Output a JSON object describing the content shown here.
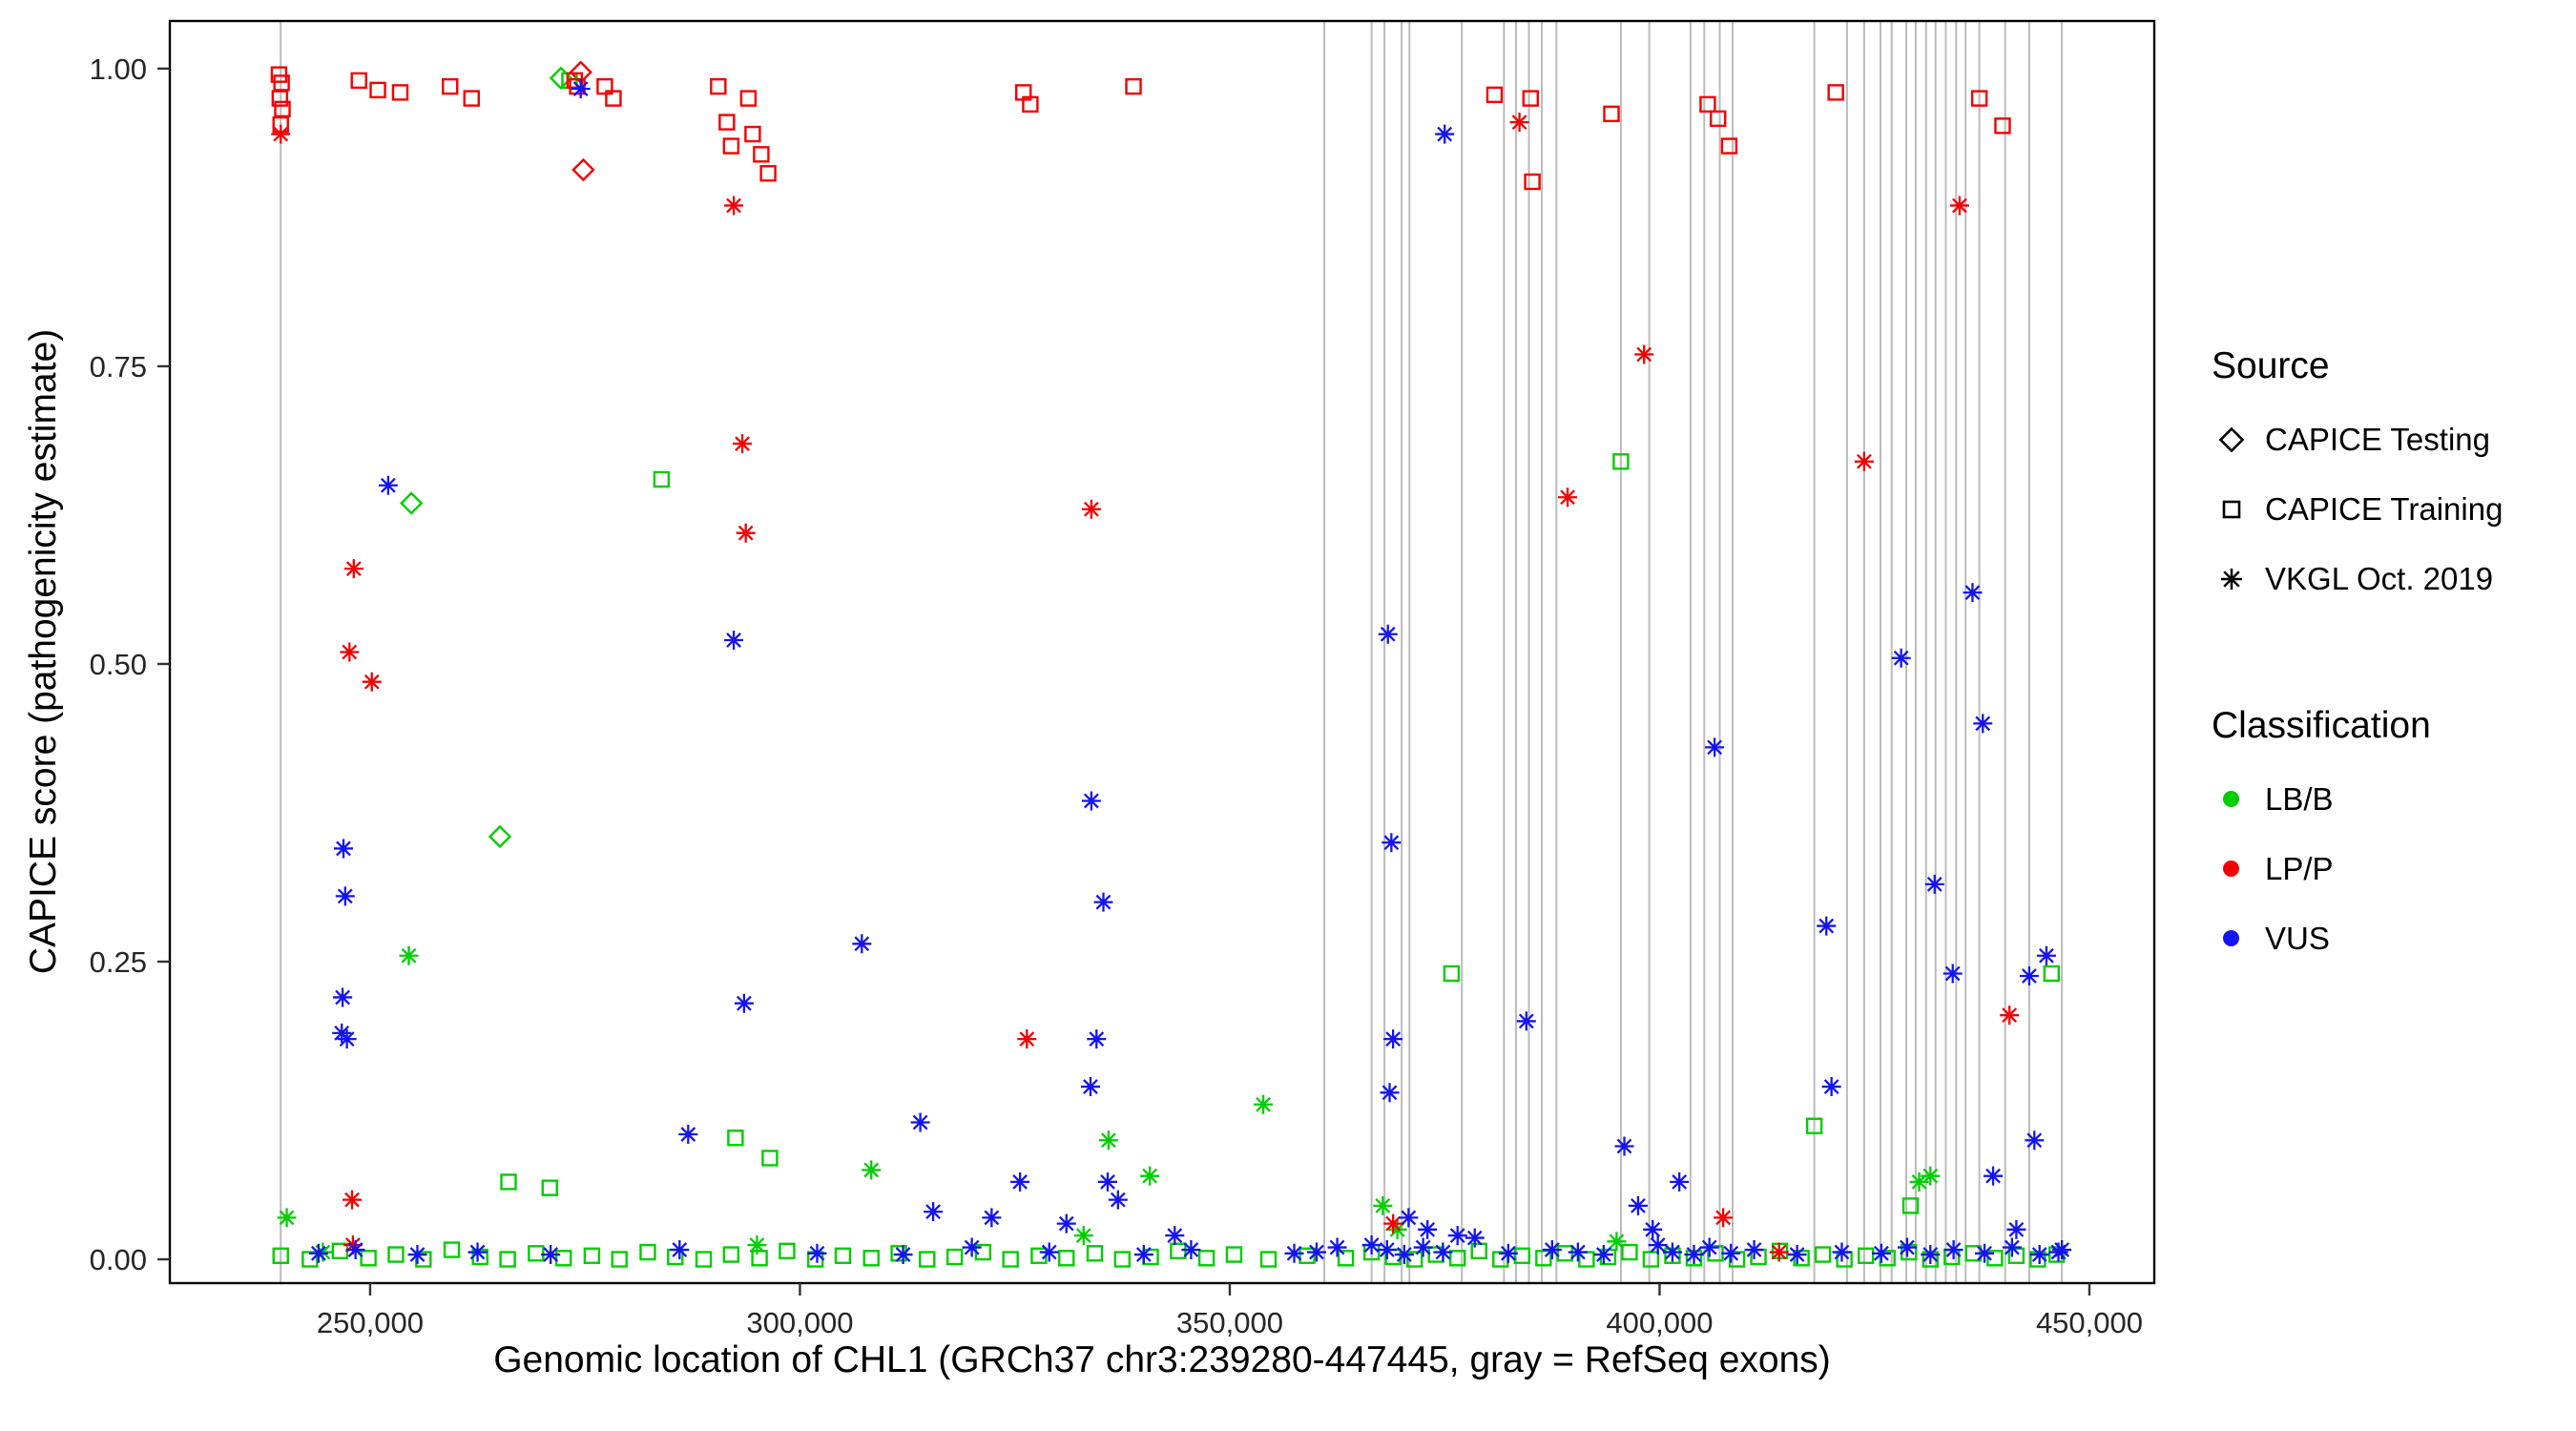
{
  "chart_data": {
    "type": "scatter",
    "title": "",
    "xlabel": "Genomic location of CHL1 (GRCh37 chr3:239280-447445, gray = RefSeq exons)",
    "ylabel": "CAPICE score (pathogenicity estimate)",
    "xlim": [
      226700,
      457550
    ],
    "ylim": [
      -0.02,
      1.04
    ],
    "grid": false,
    "panel_border_color": "#000000",
    "exon_line_color": "#BBBBBB",
    "x_ticks": [
      {
        "value": 250000,
        "label": "250,000"
      },
      {
        "value": 300000,
        "label": "300,000"
      },
      {
        "value": 350000,
        "label": "350,000"
      },
      {
        "value": 400000,
        "label": "400,000"
      },
      {
        "value": 450000,
        "label": "450,000"
      }
    ],
    "y_ticks": [
      {
        "value": 0.0,
        "label": "0.00"
      },
      {
        "value": 0.25,
        "label": "0.25"
      },
      {
        "value": 0.5,
        "label": "0.50"
      },
      {
        "value": 0.75,
        "label": "0.75"
      },
      {
        "value": 1.0,
        "label": "1.00"
      }
    ],
    "legend": {
      "position": "right",
      "source": {
        "title": "Source",
        "items": [
          {
            "label": "CAPICE Testing",
            "shape": "diamond"
          },
          {
            "label": "CAPICE Training",
            "shape": "square"
          },
          {
            "label": "VKGL Oct. 2019",
            "shape": "asterisk"
          }
        ]
      },
      "classification": {
        "title": "Classification",
        "items": [
          {
            "label": "LB/B",
            "color": "#00CE00"
          },
          {
            "label": "LP/P",
            "color": "#F20000"
          },
          {
            "label": "VUS",
            "color": "#1414F0"
          }
        ]
      }
    },
    "exon_lines_x": [
      239600,
      361000,
      366500,
      368000,
      370000,
      370900,
      377000,
      381900,
      383300,
      384800,
      386300,
      388000,
      395500,
      398800,
      403600,
      405200,
      407000,
      408500,
      418000,
      421800,
      423800,
      425700,
      427000,
      428700,
      429800,
      431000,
      432100,
      433300,
      434500,
      435600,
      437200,
      440200,
      443000,
      446800
    ],
    "series": [
      {
        "source": "CAPICE Testing",
        "classification": "LB/B",
        "shape": "diamond",
        "color": "#00CE00",
        "points": [
          [
            254800,
            0.635
          ],
          [
            265100,
            0.355
          ],
          [
            272200,
            0.992
          ]
        ]
      },
      {
        "source": "CAPICE Testing",
        "classification": "LP/P",
        "shape": "diamond",
        "color": "#F20000",
        "points": [
          [
            274500,
            0.997
          ],
          [
            274800,
            0.915
          ]
        ]
      },
      {
        "source": "CAPICE Training",
        "classification": "LB/B",
        "shape": "square",
        "color": "#00CE00",
        "points": [
          [
            273200,
            0.99
          ],
          [
            283900,
            0.655
          ],
          [
            292500,
            0.102
          ],
          [
            296500,
            0.085
          ],
          [
            266100,
            0.065
          ],
          [
            270900,
            0.06
          ],
          [
            375800,
            0.24
          ],
          [
            395500,
            0.67
          ],
          [
            418000,
            0.112
          ],
          [
            429200,
            0.045
          ],
          [
            445600,
            0.24
          ],
          [
            239600,
            0.003
          ],
          [
            243000,
            0.0
          ],
          [
            246500,
            0.007
          ],
          [
            249800,
            0.001
          ],
          [
            253000,
            0.004
          ],
          [
            256200,
            0.0
          ],
          [
            259500,
            0.008
          ],
          [
            262800,
            0.002
          ],
          [
            266000,
            0.0
          ],
          [
            269300,
            0.005
          ],
          [
            272500,
            0.001
          ],
          [
            275800,
            0.003
          ],
          [
            279000,
            0.0
          ],
          [
            282300,
            0.006
          ],
          [
            285500,
            0.002
          ],
          [
            288800,
            0.0
          ],
          [
            292000,
            0.004
          ],
          [
            295300,
            0.001
          ],
          [
            298500,
            0.007
          ],
          [
            301800,
            0.0
          ],
          [
            305000,
            0.003
          ],
          [
            308300,
            0.001
          ],
          [
            311500,
            0.005
          ],
          [
            314800,
            0.0
          ],
          [
            318000,
            0.002
          ],
          [
            321300,
            0.006
          ],
          [
            324500,
            0.0
          ],
          [
            327800,
            0.003
          ],
          [
            331000,
            0.001
          ],
          [
            334300,
            0.005
          ],
          [
            337500,
            0.0
          ],
          [
            340800,
            0.002
          ],
          [
            344000,
            0.007
          ],
          [
            347300,
            0.001
          ],
          [
            350500,
            0.004
          ],
          [
            354500,
            0.0
          ],
          [
            359000,
            0.003
          ],
          [
            363500,
            0.001
          ],
          [
            366500,
            0.006
          ],
          [
            369000,
            0.002
          ],
          [
            371500,
            0.0
          ],
          [
            374000,
            0.004
          ],
          [
            376500,
            0.001
          ],
          [
            379000,
            0.007
          ],
          [
            381500,
            0.0
          ],
          [
            384000,
            0.003
          ],
          [
            386500,
            0.001
          ],
          [
            389000,
            0.005
          ],
          [
            391500,
            0.0
          ],
          [
            394000,
            0.002
          ],
          [
            396500,
            0.006
          ],
          [
            399000,
            0.0
          ],
          [
            401500,
            0.003
          ],
          [
            404000,
            0.001
          ],
          [
            406500,
            0.005
          ],
          [
            409000,
            0.0
          ],
          [
            411500,
            0.002
          ],
          [
            414000,
            0.007
          ],
          [
            416500,
            0.001
          ],
          [
            419000,
            0.004
          ],
          [
            421500,
            0.0
          ],
          [
            424000,
            0.003
          ],
          [
            426500,
            0.001
          ],
          [
            429000,
            0.006
          ],
          [
            431500,
            0.0
          ],
          [
            434000,
            0.002
          ],
          [
            436500,
            0.005
          ],
          [
            439000,
            0.001
          ],
          [
            441500,
            0.003
          ],
          [
            444000,
            0.0
          ],
          [
            446200,
            0.004
          ]
        ]
      },
      {
        "source": "CAPICE Training",
        "classification": "LP/P",
        "shape": "square",
        "color": "#F20000",
        "points": [
          [
            239400,
            0.995
          ],
          [
            239700,
            0.988
          ],
          [
            239500,
            0.975
          ],
          [
            239800,
            0.966
          ],
          [
            239600,
            0.953
          ],
          [
            248700,
            0.99
          ],
          [
            250900,
            0.982
          ],
          [
            253500,
            0.98
          ],
          [
            259300,
            0.985
          ],
          [
            261800,
            0.975
          ],
          [
            273800,
            0.99
          ],
          [
            274100,
            0.985
          ],
          [
            277300,
            0.985
          ],
          [
            278300,
            0.975
          ],
          [
            290500,
            0.985
          ],
          [
            291500,
            0.955
          ],
          [
            292000,
            0.935
          ],
          [
            294000,
            0.975
          ],
          [
            294500,
            0.945
          ],
          [
            295500,
            0.928
          ],
          [
            296300,
            0.912
          ],
          [
            326000,
            0.98
          ],
          [
            326800,
            0.97
          ],
          [
            338800,
            0.985
          ],
          [
            380800,
            0.978
          ],
          [
            385000,
            0.975
          ],
          [
            385200,
            0.905
          ],
          [
            394400,
            0.962
          ],
          [
            405600,
            0.97
          ],
          [
            406800,
            0.958
          ],
          [
            408100,
            0.935
          ],
          [
            420500,
            0.98
          ],
          [
            437200,
            0.975
          ],
          [
            439900,
            0.952
          ]
        ]
      },
      {
        "source": "VKGL Oct. 2019",
        "classification": "LB/B",
        "shape": "asterisk",
        "color": "#00CE00",
        "points": [
          [
            240300,
            0.035
          ],
          [
            254500,
            0.255
          ],
          [
            308300,
            0.075
          ],
          [
            335900,
            0.1
          ],
          [
            340700,
            0.07
          ],
          [
            353900,
            0.13
          ],
          [
            367800,
            0.045
          ],
          [
            430200,
            0.065
          ],
          [
            431500,
            0.07
          ],
          [
            244500,
            0.006
          ],
          [
            295000,
            0.012
          ],
          [
            333000,
            0.02
          ],
          [
            369500,
            0.025
          ],
          [
            395000,
            0.015
          ]
        ]
      },
      {
        "source": "VKGL Oct. 2019",
        "classification": "LP/P",
        "shape": "asterisk",
        "color": "#F20000",
        "points": [
          [
            239600,
            0.945
          ],
          [
            248100,
            0.58
          ],
          [
            247600,
            0.51
          ],
          [
            250200,
            0.485
          ],
          [
            247900,
            0.05
          ],
          [
            248000,
            0.012
          ],
          [
            292300,
            0.885
          ],
          [
            293300,
            0.685
          ],
          [
            293700,
            0.61
          ],
          [
            326400,
            0.185
          ],
          [
            333900,
            0.63
          ],
          [
            369000,
            0.03
          ],
          [
            383700,
            0.955
          ],
          [
            389300,
            0.64
          ],
          [
            398200,
            0.76
          ],
          [
            407400,
            0.035
          ],
          [
            413900,
            0.006
          ],
          [
            423800,
            0.67
          ],
          [
            434900,
            0.885
          ],
          [
            440700,
            0.205
          ]
        ]
      },
      {
        "source": "VKGL Oct. 2019",
        "classification": "VUS",
        "shape": "asterisk",
        "color": "#1414F0",
        "points": [
          [
            246900,
            0.345
          ],
          [
            247100,
            0.305
          ],
          [
            246800,
            0.22
          ],
          [
            246700,
            0.19
          ],
          [
            247300,
            0.185
          ],
          [
            252100,
            0.65
          ],
          [
            274500,
            0.983
          ],
          [
            287000,
            0.105
          ],
          [
            292300,
            0.52
          ],
          [
            293500,
            0.215
          ],
          [
            307200,
            0.265
          ],
          [
            314000,
            0.115
          ],
          [
            315500,
            0.04
          ],
          [
            322300,
            0.035
          ],
          [
            325600,
            0.065
          ],
          [
            331000,
            0.03
          ],
          [
            333900,
            0.385
          ],
          [
            335300,
            0.3
          ],
          [
            334500,
            0.185
          ],
          [
            333800,
            0.145
          ],
          [
            335800,
            0.065
          ],
          [
            337000,
            0.05
          ],
          [
            343600,
            0.02
          ],
          [
            360100,
            0.006
          ],
          [
            368400,
            0.525
          ],
          [
            368800,
            0.35
          ],
          [
            369000,
            0.185
          ],
          [
            368600,
            0.14
          ],
          [
            370800,
            0.035
          ],
          [
            373000,
            0.025
          ],
          [
            376500,
            0.02
          ],
          [
            378500,
            0.018
          ],
          [
            375000,
            0.945
          ],
          [
            384500,
            0.2
          ],
          [
            390500,
            0.006
          ],
          [
            395900,
            0.095
          ],
          [
            397500,
            0.045
          ],
          [
            399200,
            0.025
          ],
          [
            402300,
            0.065
          ],
          [
            406400,
            0.43
          ],
          [
            419400,
            0.28
          ],
          [
            420000,
            0.145
          ],
          [
            428100,
            0.505
          ],
          [
            432000,
            0.315
          ],
          [
            434100,
            0.24
          ],
          [
            436400,
            0.56
          ],
          [
            437600,
            0.45
          ],
          [
            438800,
            0.07
          ],
          [
            441500,
            0.025
          ],
          [
            443600,
            0.1
          ],
          [
            443000,
            0.238
          ],
          [
            445000,
            0.255
          ],
          [
            446400,
            0.006
          ],
          [
            244000,
            0.005
          ],
          [
            248300,
            0.008
          ],
          [
            255500,
            0.004
          ],
          [
            262500,
            0.006
          ],
          [
            271000,
            0.004
          ],
          [
            286000,
            0.008
          ],
          [
            302000,
            0.005
          ],
          [
            312000,
            0.004
          ],
          [
            320000,
            0.01
          ],
          [
            329000,
            0.006
          ],
          [
            340000,
            0.004
          ],
          [
            345500,
            0.008
          ],
          [
            357500,
            0.005
          ],
          [
            362500,
            0.01
          ],
          [
            366500,
            0.012
          ],
          [
            368300,
            0.008
          ],
          [
            370300,
            0.004
          ],
          [
            372500,
            0.01
          ],
          [
            374800,
            0.006
          ],
          [
            382400,
            0.005
          ],
          [
            387500,
            0.008
          ],
          [
            393500,
            0.004
          ],
          [
            399800,
            0.012
          ],
          [
            401500,
            0.006
          ],
          [
            404000,
            0.004
          ],
          [
            405800,
            0.01
          ],
          [
            408300,
            0.005
          ],
          [
            411000,
            0.008
          ],
          [
            416000,
            0.004
          ],
          [
            421200,
            0.006
          ],
          [
            425800,
            0.005
          ],
          [
            428800,
            0.01
          ],
          [
            431500,
            0.004
          ],
          [
            434200,
            0.008
          ],
          [
            437800,
            0.005
          ],
          [
            441000,
            0.01
          ],
          [
            444200,
            0.004
          ],
          [
            446800,
            0.008
          ]
        ]
      }
    ]
  }
}
